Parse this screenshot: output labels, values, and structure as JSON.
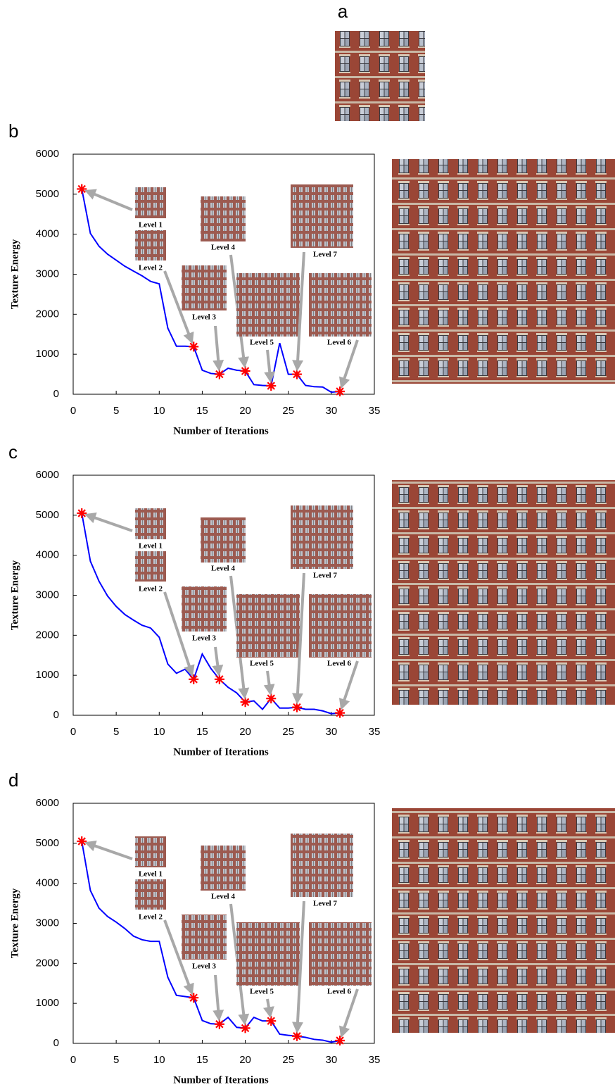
{
  "image_panel": {
    "label": "a"
  },
  "chart_data": [
    {
      "type": "line",
      "label": "b",
      "xlabel": "Number of Iterations",
      "ylabel": "Texture Energy",
      "x": [
        1,
        2,
        3,
        4,
        5,
        6,
        7,
        8,
        9,
        10,
        11,
        12,
        13,
        14,
        15,
        16,
        17,
        18,
        19,
        20,
        21,
        22,
        23,
        24,
        25,
        26,
        27,
        28,
        29,
        30,
        31
      ],
      "series": [
        {
          "color": "#0000ff",
          "values": [
            5130,
            4020,
            3700,
            3500,
            3350,
            3200,
            3080,
            2960,
            2820,
            2760,
            1650,
            1200,
            1200,
            1190,
            600,
            520,
            500,
            650,
            600,
            580,
            240,
            220,
            210,
            1280,
            500,
            500,
            220,
            190,
            180,
            50,
            70
          ]
        },
        {
          "color": "#ff0000",
          "marker": "star",
          "x": [
            1,
            14,
            17,
            20,
            23,
            26,
            31
          ],
          "values": [
            5130,
            1190,
            500,
            580,
            210,
            500,
            70
          ]
        }
      ],
      "annotations": [
        "Level 1",
        "Level 2",
        "Level 3",
        "Level 4",
        "Level 5",
        "Level 6",
        "Level 7"
      ],
      "xlim": [
        0,
        35
      ],
      "ylim": [
        0,
        6000
      ],
      "xticks": [
        0,
        5,
        10,
        15,
        20,
        25,
        30,
        35
      ],
      "yticks": [
        0,
        1000,
        2000,
        3000,
        4000,
        5000,
        6000
      ]
    },
    {
      "type": "line",
      "label": "c",
      "xlabel": "Number of Iterations",
      "ylabel": "Texture Energy",
      "x": [
        1,
        2,
        3,
        4,
        5,
        6,
        7,
        8,
        9,
        10,
        11,
        12,
        13,
        14,
        15,
        16,
        17,
        18,
        19,
        20,
        21,
        22,
        23,
        24,
        25,
        26,
        27,
        28,
        29,
        30,
        31
      ],
      "series": [
        {
          "color": "#0000ff",
          "values": [
            5050,
            3850,
            3350,
            2980,
            2720,
            2520,
            2380,
            2250,
            2180,
            1950,
            1280,
            1050,
            1150,
            900,
            1530,
            1170,
            900,
            700,
            560,
            330,
            360,
            150,
            420,
            180,
            180,
            200,
            150,
            150,
            110,
            40,
            60
          ]
        },
        {
          "color": "#ff0000",
          "marker": "star",
          "x": [
            1,
            14,
            17,
            20,
            23,
            26,
            31
          ],
          "values": [
            5050,
            900,
            900,
            330,
            420,
            200,
            60
          ]
        }
      ],
      "annotations": [
        "Level 1",
        "Level 2",
        "Level 3",
        "Level 4",
        "Level 5",
        "Level 6",
        "Level 7"
      ],
      "xlim": [
        0,
        35
      ],
      "ylim": [
        0,
        6000
      ],
      "xticks": [
        0,
        5,
        10,
        15,
        20,
        25,
        30,
        35
      ],
      "yticks": [
        0,
        1000,
        2000,
        3000,
        4000,
        5000,
        6000
      ]
    },
    {
      "type": "line",
      "label": "d",
      "xlabel": "Number of Iterations",
      "ylabel": "Texture Energy",
      "x": [
        1,
        2,
        3,
        4,
        5,
        6,
        7,
        8,
        9,
        10,
        11,
        12,
        13,
        14,
        15,
        16,
        17,
        18,
        19,
        20,
        21,
        22,
        23,
        24,
        25,
        26,
        27,
        28,
        29,
        30,
        31
      ],
      "series": [
        {
          "color": "#0000ff",
          "values": [
            5050,
            3820,
            3380,
            3170,
            3030,
            2870,
            2680,
            2590,
            2550,
            2550,
            1650,
            1200,
            1170,
            1140,
            570,
            490,
            480,
            650,
            400,
            380,
            650,
            560,
            560,
            230,
            200,
            180,
            150,
            100,
            80,
            30,
            70
          ]
        },
        {
          "color": "#ff0000",
          "marker": "star",
          "x": [
            1,
            14,
            17,
            20,
            23,
            26,
            31
          ],
          "values": [
            5050,
            1140,
            480,
            380,
            560,
            180,
            70
          ]
        }
      ],
      "annotations": [
        "Level 1",
        "Level 2",
        "Level 3",
        "Level 4",
        "Level 5",
        "Level 6",
        "Level 7"
      ],
      "xlim": [
        0,
        35
      ],
      "ylim": [
        0,
        6000
      ],
      "xticks": [
        0,
        5,
        10,
        15,
        20,
        25,
        30,
        35
      ],
      "yticks": [
        0,
        1000,
        2000,
        3000,
        4000,
        5000,
        6000
      ]
    }
  ]
}
